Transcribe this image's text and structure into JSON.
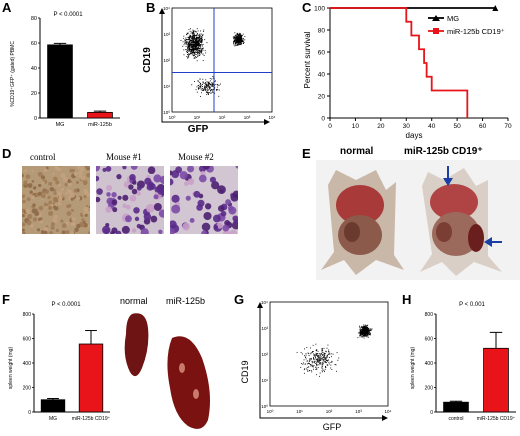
{
  "panels": {
    "a": {
      "letter": "A",
      "pvalue": "P < 0.0001",
      "ylabel": "%CD19⁺GFP⁺ (gated) PBMC",
      "chart_data": {
        "type": "bar",
        "categories": [
          "MG",
          "miR-125b"
        ],
        "values": [
          58.5,
          4.5
        ],
        "errors": [
          1.2,
          1.0
        ],
        "colors": [
          "#000000",
          "#e8141a"
        ],
        "ylim": [
          0,
          80
        ],
        "yticks": [
          "0",
          "20",
          "40",
          "60",
          "80"
        ],
        "title": "",
        "xlabel": "",
        "ylabel": "%CD19⁺GFP⁺ (gated) PBMC"
      }
    },
    "b": {
      "letter": "B",
      "chart_data": {
        "type": "scatter",
        "xlabel": "GFP",
        "ylabel": "CD19",
        "xticks": [
          "10⁰",
          "10¹",
          "10²",
          "10³",
          "10⁴"
        ],
        "yticks": [
          "10⁰",
          "10¹",
          "10²",
          "10³",
          "10⁴"
        ],
        "gates": "quadrant"
      }
    },
    "c": {
      "letter": "C",
      "chart_data": {
        "type": "line",
        "xlabel": "days",
        "ylabel": "Percent survival",
        "xlim": [
          0,
          70
        ],
        "ylim": [
          0,
          100
        ],
        "xticks": [
          "0",
          "10",
          "20",
          "30",
          "40",
          "50",
          "60",
          "70"
        ],
        "yticks": [
          "0",
          "20",
          "40",
          "60",
          "80",
          "100"
        ],
        "series": [
          {
            "name": "MG",
            "color": "#000000",
            "points": [
              [
                0,
                100
              ],
              [
                65,
                100
              ]
            ]
          },
          {
            "name": "miR-125b CD19⁺",
            "color": "#e8141a",
            "points": [
              [
                0,
                100
              ],
              [
                30,
                100
              ],
              [
                30,
                87.5
              ],
              [
                32,
                87.5
              ],
              [
                32,
                75
              ],
              [
                35,
                75
              ],
              [
                35,
                62.5
              ],
              [
                37,
                62.5
              ],
              [
                37,
                50
              ],
              [
                38,
                50
              ],
              [
                38,
                37.5
              ],
              [
                40,
                37.5
              ],
              [
                40,
                25
              ],
              [
                54,
                25
              ],
              [
                54,
                0
              ]
            ]
          }
        ]
      }
    },
    "d": {
      "letter": "D",
      "labels": [
        "control",
        "Mouse #1",
        "Mouse #2"
      ]
    },
    "e": {
      "letter": "E",
      "labels": [
        "normal",
        "miR-125b CD19⁺"
      ]
    },
    "f": {
      "letter": "F",
      "pvalue": "P < 0.0001",
      "photo_labels": [
        "normal",
        "miR-125b"
      ],
      "chart_data": {
        "type": "bar",
        "categories": [
          "MG",
          "miR-125b CD19⁺"
        ],
        "values": [
          100,
          555
        ],
        "errors": [
          10,
          110
        ],
        "colors": [
          "#000000",
          "#e8141a"
        ],
        "ylim": [
          0,
          800
        ],
        "yticks": [
          "0",
          "200",
          "400",
          "600",
          "800"
        ],
        "title": "",
        "xlabel": "",
        "ylabel": "spleen weight (mg)"
      }
    },
    "g": {
      "letter": "G",
      "chart_data": {
        "type": "scatter",
        "xlabel": "GFP",
        "ylabel": "CD19",
        "xticks": [
          "10⁰",
          "10¹",
          "10²",
          "10³",
          "10⁴"
        ],
        "yticks": [
          "10⁰",
          "10¹",
          "10²",
          "10³",
          "10⁴"
        ]
      }
    },
    "h": {
      "letter": "H",
      "pvalue": "P < 0.001",
      "chart_data": {
        "type": "bar",
        "categories": [
          "control",
          "miR-125b CD19⁺"
        ],
        "values": [
          80,
          520
        ],
        "errors": [
          8,
          130
        ],
        "colors": [
          "#000000",
          "#e8141a"
        ],
        "ylim": [
          0,
          800
        ],
        "yticks": [
          "0",
          "200",
          "400",
          "600",
          "800"
        ],
        "title": "",
        "xlabel": "",
        "ylabel": "spleen weight (mg)"
      }
    }
  }
}
